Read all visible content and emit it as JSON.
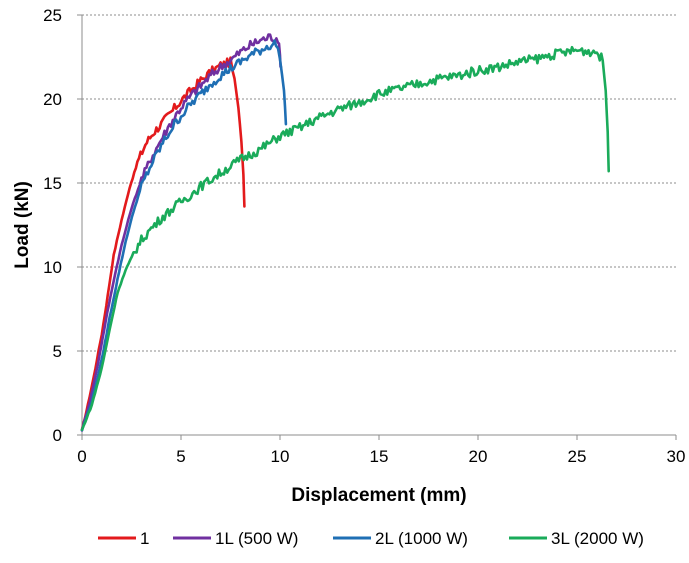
{
  "chart_data": {
    "type": "line",
    "title": "",
    "xlabel": "Displacement (mm)",
    "ylabel": "Load (kN)",
    "xlim": [
      0,
      30
    ],
    "ylim": [
      0,
      25
    ],
    "xticks": [
      0,
      5,
      10,
      15,
      20,
      25,
      30
    ],
    "yticks": [
      0,
      5,
      10,
      15,
      20,
      25
    ],
    "grid": "horizontal dashed",
    "legend_position": "bottom",
    "series": [
      {
        "name": "1",
        "color": "#e31a1c",
        "points": [
          [
            0,
            0.3
          ],
          [
            0.3,
            1.8
          ],
          [
            0.6,
            3.5
          ],
          [
            1.0,
            6.0
          ],
          [
            1.3,
            8.3
          ],
          [
            1.6,
            10.7
          ],
          [
            2.0,
            12.8
          ],
          [
            2.4,
            14.7
          ],
          [
            2.8,
            16.2
          ],
          [
            3.2,
            17.3
          ],
          [
            3.6,
            18.0
          ],
          [
            4.0,
            18.5
          ],
          [
            4.5,
            19.2
          ],
          [
            5.0,
            19.9
          ],
          [
            5.5,
            20.5
          ],
          [
            6.0,
            21.1
          ],
          [
            6.5,
            21.6
          ],
          [
            7.0,
            22.0
          ],
          [
            7.5,
            22.2
          ],
          [
            7.7,
            21.2
          ],
          [
            7.9,
            19.5
          ],
          [
            8.05,
            17.5
          ],
          [
            8.15,
            15.5
          ],
          [
            8.2,
            13.6
          ]
        ]
      },
      {
        "name": "1L (500 W)",
        "color": "#7030a0",
        "points": [
          [
            0,
            0.3
          ],
          [
            0.4,
            2.0
          ],
          [
            0.8,
            4.2
          ],
          [
            1.2,
            6.8
          ],
          [
            1.6,
            9.2
          ],
          [
            2.0,
            11.3
          ],
          [
            2.5,
            13.5
          ],
          [
            3.0,
            15.2
          ],
          [
            3.5,
            16.5
          ],
          [
            4.0,
            17.6
          ],
          [
            4.5,
            18.6
          ],
          [
            5.0,
            19.5
          ],
          [
            5.5,
            20.2
          ],
          [
            6.0,
            20.8
          ],
          [
            6.5,
            21.4
          ],
          [
            7.0,
            21.9
          ],
          [
            7.5,
            22.3
          ],
          [
            8.0,
            22.8
          ],
          [
            8.5,
            23.2
          ],
          [
            9.0,
            23.5
          ],
          [
            9.5,
            23.7
          ],
          [
            9.9,
            23.6
          ],
          [
            10.0,
            22.5
          ],
          [
            10.05,
            21.9
          ]
        ]
      },
      {
        "name": "2L (1000 W)",
        "color": "#1f6fb4",
        "points": [
          [
            0,
            0.3
          ],
          [
            0.5,
            2.0
          ],
          [
            1.0,
            4.5
          ],
          [
            1.4,
            7.0
          ],
          [
            1.8,
            9.3
          ],
          [
            2.2,
            11.5
          ],
          [
            2.6,
            13.3
          ],
          [
            3.0,
            14.8
          ],
          [
            3.5,
            16.1
          ],
          [
            4.0,
            17.2
          ],
          [
            4.5,
            18.2
          ],
          [
            5.0,
            19.0
          ],
          [
            5.5,
            19.7
          ],
          [
            6.0,
            20.3
          ],
          [
            6.5,
            20.9
          ],
          [
            7.0,
            21.4
          ],
          [
            7.5,
            21.8
          ],
          [
            8.0,
            22.2
          ],
          [
            8.5,
            22.6
          ],
          [
            9.0,
            22.9
          ],
          [
            9.5,
            23.2
          ],
          [
            9.8,
            23.3
          ],
          [
            10.0,
            22.4
          ],
          [
            10.2,
            20.5
          ],
          [
            10.3,
            18.5
          ]
        ]
      },
      {
        "name": "3L (2000 W)",
        "color": "#1aab5a",
        "points": [
          [
            0,
            0.3
          ],
          [
            0.5,
            1.8
          ],
          [
            1.0,
            4.0
          ],
          [
            1.4,
            6.3
          ],
          [
            1.8,
            8.5
          ],
          [
            2.2,
            9.8
          ],
          [
            2.6,
            10.8
          ],
          [
            3.0,
            11.6
          ],
          [
            3.5,
            12.3
          ],
          [
            4.0,
            12.9
          ],
          [
            4.5,
            13.4
          ],
          [
            5.0,
            13.9
          ],
          [
            5.5,
            14.3
          ],
          [
            6.0,
            14.8
          ],
          [
            7.0,
            15.6
          ],
          [
            8.0,
            16.4
          ],
          [
            9.0,
            17.0
          ],
          [
            10.0,
            17.8
          ],
          [
            11.0,
            18.3
          ],
          [
            12.0,
            18.9
          ],
          [
            13.0,
            19.4
          ],
          [
            14.0,
            19.8
          ],
          [
            15.0,
            20.3
          ],
          [
            16.0,
            20.6
          ],
          [
            17.0,
            20.9
          ],
          [
            18.0,
            21.2
          ],
          [
            19.0,
            21.4
          ],
          [
            20.0,
            21.7
          ],
          [
            21.0,
            21.9
          ],
          [
            22.0,
            22.2
          ],
          [
            23.0,
            22.4
          ],
          [
            24.0,
            22.7
          ],
          [
            25.0,
            22.9
          ],
          [
            26.0,
            22.8
          ],
          [
            26.3,
            22.3
          ],
          [
            26.45,
            20.5
          ],
          [
            26.55,
            18.0
          ],
          [
            26.6,
            15.7
          ]
        ]
      }
    ]
  }
}
